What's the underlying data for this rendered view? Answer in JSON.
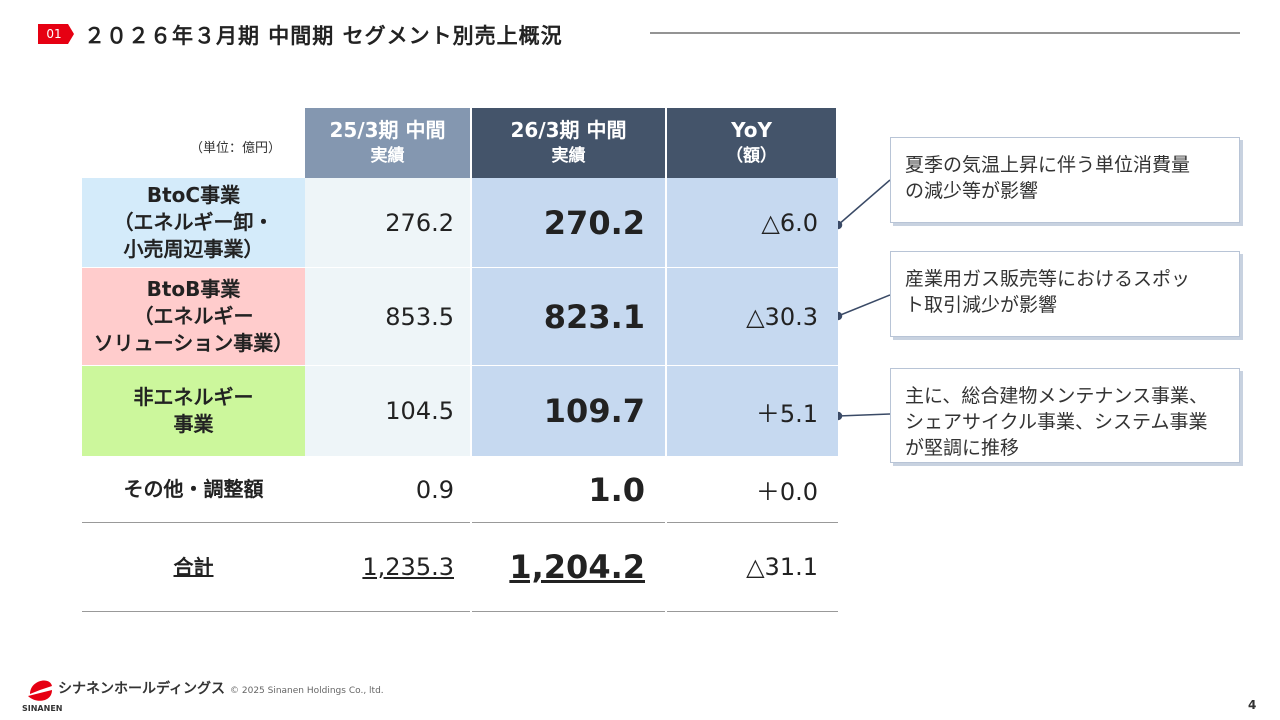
{
  "header": {
    "badge": "01",
    "title": "２０２６年３月期 中間期 セグメント別売上概況"
  },
  "table": {
    "unit": "（単位：億円）",
    "columns": [
      [
        "25/3期 中間",
        "実績"
      ],
      [
        "26/3期 中間",
        "実績"
      ],
      [
        "YoY",
        "（額）"
      ]
    ],
    "rows": [
      {
        "label": [
          "BtoC事業",
          "（エネルギー卸・",
          "小売周辺事業）"
        ],
        "cells": [
          "276.2",
          "270.2",
          "△6.0"
        ]
      },
      {
        "label": [
          "BtoB事業",
          "（エネルギー",
          "ソリューション事業）"
        ],
        "cells": [
          "853.5",
          "823.1",
          "△30.3"
        ]
      },
      {
        "label": [
          "非エネルギー",
          "事業"
        ],
        "cells": [
          "104.5",
          "109.7",
          "＋5.1"
        ]
      },
      {
        "label": [
          "その他・調整額"
        ],
        "cells": [
          "0.9",
          "1.0",
          "＋0.0"
        ]
      },
      {
        "label": [
          "合計"
        ],
        "cells": [
          "1,235.3",
          "1,204.2",
          "△31.1"
        ]
      }
    ]
  },
  "notes": [
    [
      "夏季の気温上昇に伴う単位消費量",
      "の減少等が影響"
    ],
    [
      "産業用ガス販売等におけるスポッ",
      "ト取引減少が影響"
    ],
    [
      "主に、総合建物メンテナンス事業、",
      "シェアサイクル事業、システム事業",
      "が堅調に推移"
    ]
  ],
  "footer": {
    "logo": "シナネンホールディングス",
    "brand": "SINANEN",
    "copyright": "© 2025 Sinanen Holdings Co., ltd.",
    "page": "4"
  }
}
